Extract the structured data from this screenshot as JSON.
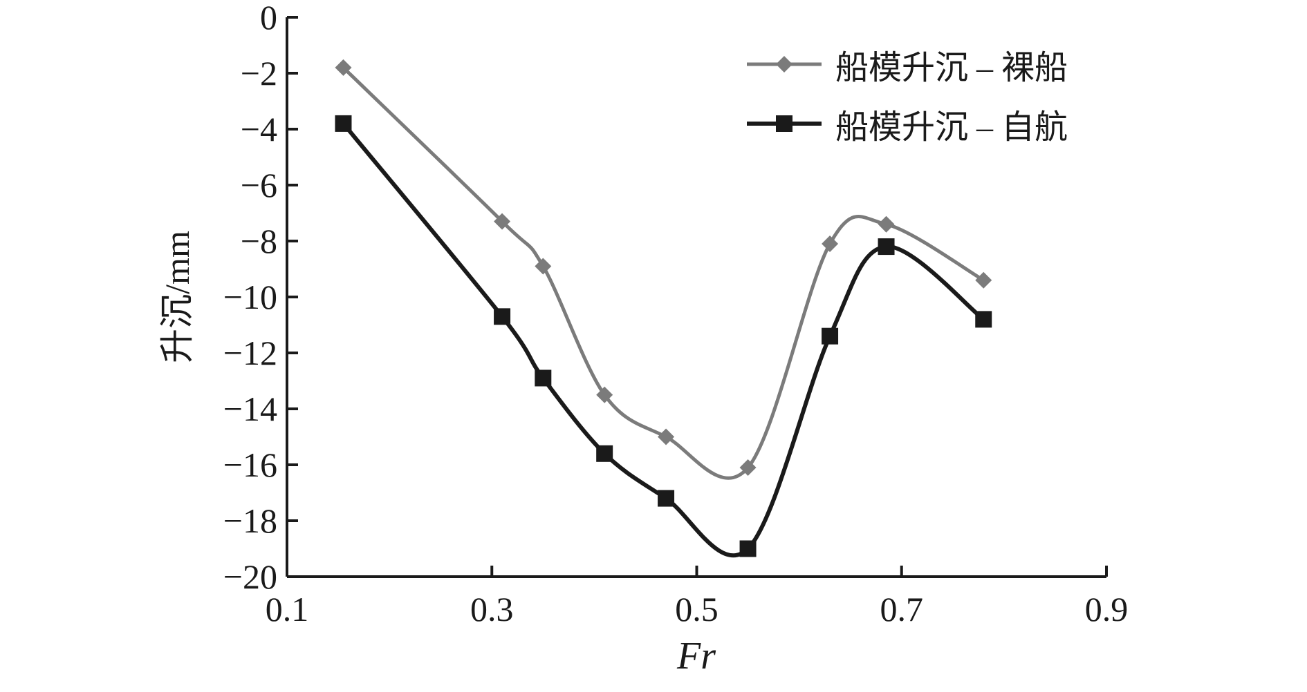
{
  "chart_data": {
    "type": "line",
    "title": "",
    "xlabel": "Fr",
    "ylabel": "升沉/mm",
    "xlim": [
      0.1,
      0.9
    ],
    "ylim": [
      -20,
      0
    ],
    "xticks": [
      0.1,
      0.3,
      0.5,
      0.7,
      0.9
    ],
    "yticks": [
      0,
      -2,
      -4,
      -6,
      -8,
      -10,
      -12,
      -14,
      -16,
      -18,
      -20
    ],
    "axis_color": "#1a1a1a",
    "grid": false,
    "legend_position": "top-right-inside",
    "x": [
      0.155,
      0.31,
      0.35,
      0.41,
      0.47,
      0.55,
      0.63,
      0.685,
      0.78
    ],
    "series": [
      {
        "name": "船模升沉 – 裸船",
        "marker": "diamond",
        "color": "#7b7b7b",
        "line_width": 5,
        "marker_size": 12,
        "values": [
          -1.8,
          -7.3,
          -8.9,
          -13.5,
          -15.0,
          -16.1,
          -8.1,
          -7.4,
          -9.4
        ]
      },
      {
        "name": "船模升沉 – 自航",
        "marker": "square",
        "color": "#1a1a1a",
        "line_width": 6,
        "marker_size": 12,
        "values": [
          -3.8,
          -10.7,
          -12.9,
          -15.6,
          -17.2,
          -19.0,
          -11.4,
          -8.2,
          -10.8
        ]
      }
    ]
  }
}
